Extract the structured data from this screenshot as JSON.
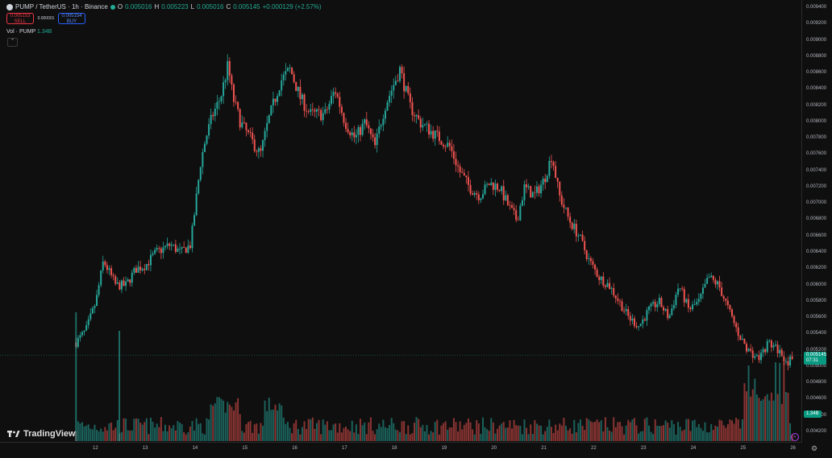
{
  "header": {
    "symbol": "PUMP / TetherUS · 1h · Binance",
    "o_label": "O",
    "o_value": "0.005016",
    "h_label": "H",
    "h_value": "0.005223",
    "l_label": "L",
    "l_value": "0.005016",
    "c_label": "C",
    "c_value": "0.005145",
    "change": "+0.000129 (+2.57%)"
  },
  "trade": {
    "sell_price": "0.005153",
    "sell_label": "SELL",
    "spread": "0.000001",
    "buy_price": "0.005154",
    "buy_label": "BUY"
  },
  "volume_legend": {
    "label": "Vol · PUMP",
    "value": "1.34B"
  },
  "collapse_glyph": "⌃",
  "logo_text": "TradingView",
  "price_badge": {
    "price": "0.005145",
    "countdown": "07:31"
  },
  "volume_badge": "1.34B",
  "gear_glyph": "⚙",
  "bolt_glyph": "ϟ",
  "colors": {
    "up": "#26a69a",
    "down": "#ef5350",
    "background": "#0f0f0f"
  },
  "chart_data": {
    "type": "candlestick",
    "y_ticks": [
      "0.009400",
      "0.009200",
      "0.009000",
      "0.008800",
      "0.008600",
      "0.008400",
      "0.008200",
      "0.008000",
      "0.007800",
      "0.007600",
      "0.007400",
      "0.007200",
      "0.007000",
      "0.006800",
      "0.006600",
      "0.006400",
      "0.006200",
      "0.006000",
      "0.005800",
      "0.005600",
      "0.005400",
      "0.005200",
      "0.005000",
      "0.004800",
      "0.004600",
      "0.004400",
      "0.004200"
    ],
    "x_ticks": [
      "12",
      "13",
      "14",
      "15",
      "16",
      "17",
      "18",
      "19",
      "20",
      "21",
      "22",
      "23",
      "24",
      "25",
      "26"
    ],
    "ylim": [
      0.00412,
      0.00946
    ],
    "xlim": [
      11.55,
      26.05
    ],
    "last_price": 0.005145,
    "close_path": [
      [
        11.6,
        0.0053
      ],
      [
        11.8,
        0.00545
      ],
      [
        12.0,
        0.0058
      ],
      [
        12.15,
        0.0063
      ],
      [
        12.4,
        0.006
      ],
      [
        12.6,
        0.006
      ],
      [
        12.8,
        0.0062
      ],
      [
        13.0,
        0.00625
      ],
      [
        13.2,
        0.0064
      ],
      [
        13.5,
        0.0065
      ],
      [
        13.7,
        0.0064
      ],
      [
        13.9,
        0.0065
      ],
      [
        14.0,
        0.007
      ],
      [
        14.1,
        0.0075
      ],
      [
        14.2,
        0.0078
      ],
      [
        14.35,
        0.0081
      ],
      [
        14.5,
        0.0083
      ],
      [
        14.65,
        0.0087
      ],
      [
        14.75,
        0.0083
      ],
      [
        14.9,
        0.008
      ],
      [
        15.1,
        0.0078
      ],
      [
        15.3,
        0.0076
      ],
      [
        15.45,
        0.008
      ],
      [
        15.7,
        0.0085
      ],
      [
        15.9,
        0.00865
      ],
      [
        16.1,
        0.0083
      ],
      [
        16.3,
        0.0081
      ],
      [
        16.6,
        0.0081
      ],
      [
        16.8,
        0.0084
      ],
      [
        17.0,
        0.008
      ],
      [
        17.2,
        0.0078
      ],
      [
        17.4,
        0.008
      ],
      [
        17.6,
        0.0077
      ],
      [
        17.8,
        0.0082
      ],
      [
        18.0,
        0.0085
      ],
      [
        18.1,
        0.00865
      ],
      [
        18.3,
        0.0082
      ],
      [
        18.5,
        0.008
      ],
      [
        18.7,
        0.0079
      ],
      [
        18.9,
        0.0078
      ],
      [
        19.1,
        0.0077
      ],
      [
        19.3,
        0.0074
      ],
      [
        19.5,
        0.0072
      ],
      [
        19.7,
        0.0071
      ],
      [
        19.9,
        0.00725
      ],
      [
        20.1,
        0.0072
      ],
      [
        20.3,
        0.00695
      ],
      [
        20.45,
        0.0068
      ],
      [
        20.6,
        0.0072
      ],
      [
        20.8,
        0.0071
      ],
      [
        21.0,
        0.0073
      ],
      [
        21.15,
        0.0076
      ],
      [
        21.3,
        0.0071
      ],
      [
        21.5,
        0.0068
      ],
      [
        21.7,
        0.0066
      ],
      [
        21.9,
        0.0063
      ],
      [
        22.1,
        0.0061
      ],
      [
        22.3,
        0.006
      ],
      [
        22.5,
        0.0058
      ],
      [
        22.7,
        0.0056
      ],
      [
        22.9,
        0.0055
      ],
      [
        23.1,
        0.0057
      ],
      [
        23.3,
        0.0058
      ],
      [
        23.5,
        0.0056
      ],
      [
        23.7,
        0.006
      ],
      [
        23.9,
        0.0057
      ],
      [
        24.1,
        0.0058
      ],
      [
        24.3,
        0.0061
      ],
      [
        24.5,
        0.006
      ],
      [
        24.7,
        0.0057
      ],
      [
        24.9,
        0.0054
      ],
      [
        25.1,
        0.0052
      ],
      [
        25.3,
        0.0051
      ],
      [
        25.5,
        0.0053
      ],
      [
        25.7,
        0.0052
      ],
      [
        25.9,
        0.00505
      ],
      [
        26.0,
        0.005145
      ]
    ]
  }
}
